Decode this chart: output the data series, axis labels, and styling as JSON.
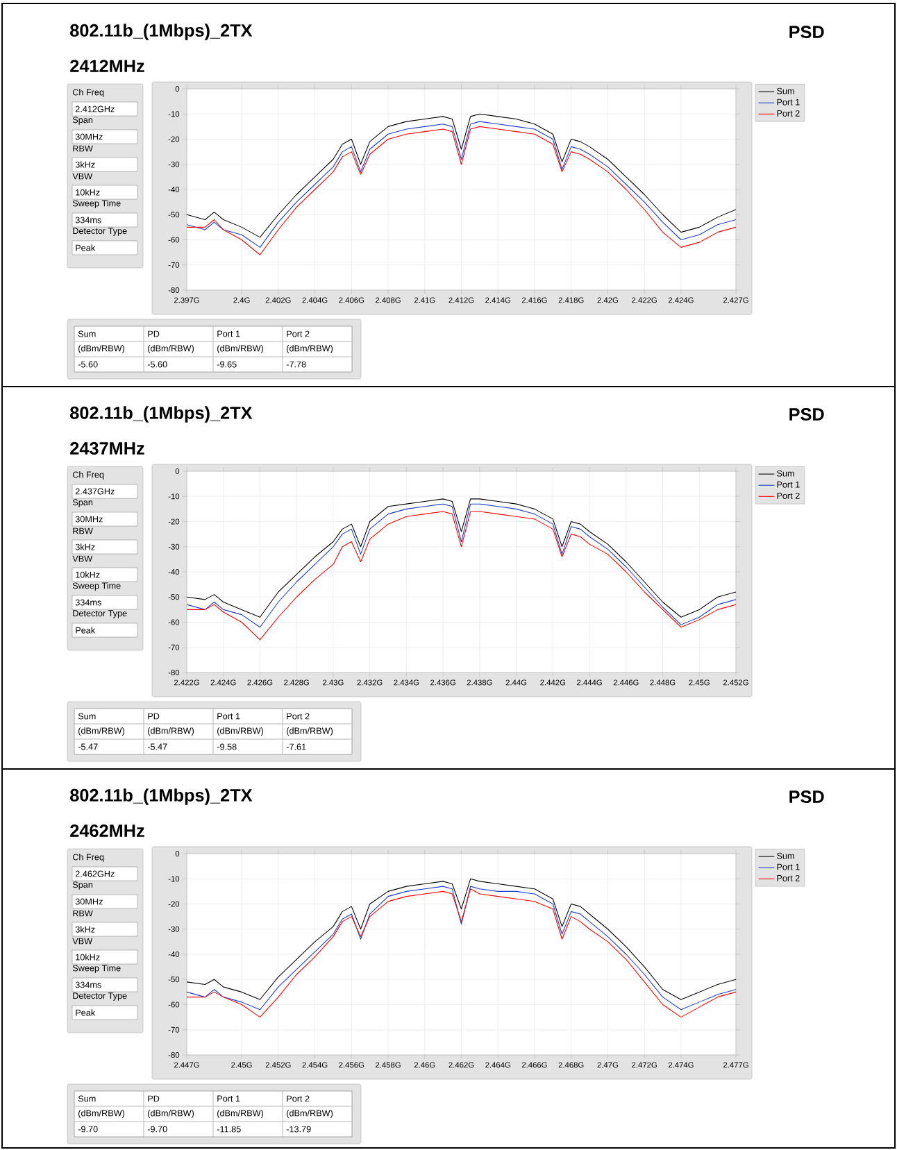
{
  "chart_data": [
    {
      "type": "line",
      "title": "802.11b_(1Mbps)_2TX",
      "subtitle": "2412MHz",
      "annotations": [
        "PSD",
        "Ch Freq",
        "2.412GHz",
        "Span",
        "30MHz",
        "RBW",
        "3kHz",
        "VBW",
        "10kHz",
        "Sweep Time",
        "334ms",
        "Detector Type",
        "Peak",
        "Sum",
        "PD",
        "Port 1",
        "Port 2",
        "(dBm/RBW)",
        "(dBm/RBW)",
        "(dBm/RBW)",
        "(dBm/RBW)",
        "-5.60",
        "-5.60",
        "-9.65",
        "-7.78"
      ],
      "x": [
        2.397,
        2.398,
        2.3985,
        2.399,
        2.4,
        2.401,
        2.402,
        2.403,
        2.404,
        2.405,
        2.4055,
        2.406,
        2.4065,
        2.407,
        2.408,
        2.409,
        2.41,
        2.411,
        2.4115,
        2.412,
        2.4125,
        2.413,
        2.414,
        2.415,
        2.416,
        2.417,
        2.4175,
        2.418,
        2.4185,
        2.419,
        2.42,
        2.421,
        2.422,
        2.423,
        2.424,
        2.425,
        2.426,
        2.427
      ],
      "series": [
        {
          "name": "Sum",
          "color": "#000000",
          "values": [
            -50,
            -52,
            -49,
            -52,
            -55,
            -59,
            -50,
            -42,
            -35,
            -28,
            -22,
            -20,
            -30,
            -21,
            -15,
            -13,
            -12,
            -11,
            -12,
            -24,
            -11,
            -10,
            -11,
            -12,
            -14,
            -18,
            -29,
            -20,
            -21,
            -23,
            -28,
            -35,
            -42,
            -50,
            -57,
            -55,
            -51,
            -48
          ]
        },
        {
          "name": "Port 1",
          "color": "#1a3ccc",
          "values": [
            -54,
            -56,
            -53,
            -56,
            -58,
            -63,
            -53,
            -45,
            -38,
            -31,
            -25,
            -23,
            -33,
            -24,
            -18,
            -16,
            -15,
            -14,
            -15,
            -28,
            -14,
            -13,
            -14,
            -15,
            -16,
            -20,
            -32,
            -23,
            -24,
            -26,
            -31,
            -38,
            -45,
            -53,
            -60,
            -58,
            -54,
            -52
          ]
        },
        {
          "name": "Port 2",
          "color": "#ff0000",
          "values": [
            -55,
            -55,
            -52,
            -56,
            -60,
            -66,
            -56,
            -47,
            -40,
            -33,
            -27,
            -25,
            -34,
            -26,
            -20,
            -18,
            -17,
            -16,
            -17,
            -30,
            -16,
            -15,
            -16,
            -17,
            -18,
            -22,
            -33,
            -25,
            -26,
            -28,
            -33,
            -40,
            -48,
            -57,
            -63,
            -61,
            -57,
            -55
          ]
        }
      ],
      "xlim": [
        2.397,
        2.427
      ],
      "ylim": [
        -80,
        0
      ],
      "xticks": [
        {
          "value": 2.397,
          "label": "2.397G"
        },
        {
          "value": 2.4,
          "label": "2.4G"
        },
        {
          "value": 2.402,
          "label": "2.402G"
        },
        {
          "value": 2.404,
          "label": "2.404G"
        },
        {
          "value": 2.406,
          "label": "2.406G"
        },
        {
          "value": 2.408,
          "label": "2.408G"
        },
        {
          "value": 2.41,
          "label": "2.41G"
        },
        {
          "value": 2.412,
          "label": "2.412G"
        },
        {
          "value": 2.414,
          "label": "2.414G"
        },
        {
          "value": 2.416,
          "label": "2.416G"
        },
        {
          "value": 2.418,
          "label": "2.418G"
        },
        {
          "value": 2.42,
          "label": "2.42G"
        },
        {
          "value": 2.422,
          "label": "2.422G"
        },
        {
          "value": 2.424,
          "label": "2.424G"
        },
        {
          "value": 2.427,
          "label": "2.427G"
        }
      ],
      "yticks": [
        0,
        -10,
        -20,
        -30,
        -40,
        -50,
        -60,
        -70,
        -80
      ],
      "grid": true,
      "legend": "right"
    },
    {
      "type": "line",
      "title": "802.11b_(1Mbps)_2TX",
      "subtitle": "2437MHz",
      "annotations": [
        "PSD",
        "Ch Freq",
        "2.437GHz",
        "Span",
        "30MHz",
        "RBW",
        "3kHz",
        "VBW",
        "10kHz",
        "Sweep Time",
        "334ms",
        "Detector Type",
        "Peak",
        "Sum",
        "PD",
        "Port 1",
        "Port 2",
        "(dBm/RBW)",
        "(dBm/RBW)",
        "(dBm/RBW)",
        "(dBm/RBW)",
        "-5.47",
        "-5.47",
        "-9.58",
        "-7.61"
      ],
      "x": [
        2.422,
        2.423,
        2.4235,
        2.424,
        2.425,
        2.426,
        2.427,
        2.428,
        2.429,
        2.43,
        2.4305,
        2.431,
        2.4315,
        2.432,
        2.433,
        2.434,
        2.435,
        2.436,
        2.4365,
        2.437,
        2.4375,
        2.438,
        2.439,
        2.44,
        2.441,
        2.442,
        2.4425,
        2.443,
        2.4435,
        2.444,
        2.445,
        2.446,
        2.447,
        2.448,
        2.449,
        2.45,
        2.451,
        2.452
      ],
      "series": [
        {
          "name": "Sum",
          "color": "#000000",
          "values": [
            -50,
            -51,
            -49,
            -52,
            -55,
            -58,
            -48,
            -41,
            -34,
            -28,
            -23,
            -21,
            -30,
            -20,
            -14,
            -13,
            -12,
            -11,
            -12,
            -24,
            -11,
            -11,
            -12,
            -13,
            -15,
            -19,
            -30,
            -20,
            -21,
            -24,
            -29,
            -36,
            -44,
            -52,
            -58,
            -55,
            -50,
            -48
          ]
        },
        {
          "name": "Port 1",
          "color": "#1a3ccc",
          "values": [
            -53,
            -55,
            -52,
            -55,
            -57,
            -62,
            -52,
            -44,
            -37,
            -30,
            -25,
            -23,
            -33,
            -23,
            -17,
            -15,
            -14,
            -13,
            -14,
            -28,
            -13,
            -13,
            -14,
            -15,
            -17,
            -21,
            -33,
            -22,
            -23,
            -26,
            -31,
            -38,
            -46,
            -54,
            -61,
            -58,
            -53,
            -51
          ]
        },
        {
          "name": "Port 2",
          "color": "#ff0000",
          "values": [
            -55,
            -55,
            -53,
            -56,
            -60,
            -67,
            -58,
            -50,
            -43,
            -37,
            -30,
            -28,
            -36,
            -27,
            -21,
            -18,
            -17,
            -16,
            -17,
            -30,
            -16,
            -16,
            -17,
            -18,
            -19,
            -23,
            -34,
            -25,
            -26,
            -29,
            -33,
            -40,
            -48,
            -55,
            -62,
            -59,
            -55,
            -53
          ]
        }
      ],
      "xlim": [
        2.422,
        2.452
      ],
      "ylim": [
        -80,
        0
      ],
      "xticks": [
        {
          "value": 2.422,
          "label": "2.422G"
        },
        {
          "value": 2.424,
          "label": "2.424G"
        },
        {
          "value": 2.426,
          "label": "2.426G"
        },
        {
          "value": 2.428,
          "label": "2.428G"
        },
        {
          "value": 2.43,
          "label": "2.43G"
        },
        {
          "value": 2.432,
          "label": "2.432G"
        },
        {
          "value": 2.434,
          "label": "2.434G"
        },
        {
          "value": 2.436,
          "label": "2.436G"
        },
        {
          "value": 2.438,
          "label": "2.438G"
        },
        {
          "value": 2.44,
          "label": "2.44G"
        },
        {
          "value": 2.442,
          "label": "2.442G"
        },
        {
          "value": 2.444,
          "label": "2.444G"
        },
        {
          "value": 2.446,
          "label": "2.446G"
        },
        {
          "value": 2.448,
          "label": "2.448G"
        },
        {
          "value": 2.45,
          "label": "2.45G"
        },
        {
          "value": 2.452,
          "label": "2.452G"
        }
      ],
      "yticks": [
        0,
        -10,
        -20,
        -30,
        -40,
        -50,
        -60,
        -70,
        -80
      ],
      "grid": true,
      "legend": "right"
    },
    {
      "type": "line",
      "title": "802.11b_(1Mbps)_2TX",
      "subtitle": "2462MHz",
      "annotations": [
        "PSD",
        "Ch Freq",
        "2.462GHz",
        "Span",
        "30MHz",
        "RBW",
        "3kHz",
        "VBW",
        "10kHz",
        "Sweep Time",
        "334ms",
        "Detector Type",
        "Peak",
        "Sum",
        "PD",
        "Port 1",
        "Port 2",
        "(dBm/RBW)",
        "(dBm/RBW)",
        "(dBm/RBW)",
        "(dBm/RBW)",
        "-9.70",
        "-9.70",
        "-11.85",
        "-13.79"
      ],
      "x": [
        2.447,
        2.448,
        2.4485,
        2.449,
        2.45,
        2.451,
        2.452,
        2.453,
        2.454,
        2.455,
        2.4555,
        2.456,
        2.4565,
        2.457,
        2.458,
        2.459,
        2.46,
        2.461,
        2.4615,
        2.462,
        2.4625,
        2.463,
        2.464,
        2.465,
        2.466,
        2.467,
        2.4675,
        2.468,
        2.4685,
        2.469,
        2.47,
        2.471,
        2.472,
        2.473,
        2.474,
        2.475,
        2.476,
        2.477
      ],
      "series": [
        {
          "name": "Sum",
          "color": "#000000",
          "values": [
            -51,
            -52,
            -50,
            -53,
            -55,
            -58,
            -49,
            -42,
            -35,
            -29,
            -23,
            -21,
            -30,
            -20,
            -15,
            -13,
            -12,
            -11,
            -12,
            -22,
            -10,
            -11,
            -12,
            -13,
            -14,
            -18,
            -29,
            -20,
            -21,
            -24,
            -30,
            -37,
            -45,
            -54,
            -58,
            -55,
            -52,
            -50
          ]
        },
        {
          "name": "Port 1",
          "color": "#1a3ccc",
          "values": [
            -55,
            -57,
            -54,
            -57,
            -59,
            -62,
            -53,
            -46,
            -39,
            -32,
            -26,
            -24,
            -34,
            -24,
            -17,
            -15,
            -14,
            -13,
            -14,
            -28,
            -13,
            -14,
            -15,
            -15,
            -16,
            -20,
            -32,
            -23,
            -24,
            -27,
            -33,
            -40,
            -48,
            -57,
            -62,
            -59,
            -56,
            -54
          ]
        },
        {
          "name": "Port 2",
          "color": "#ff0000",
          "values": [
            -57,
            -57,
            -55,
            -57,
            -60,
            -65,
            -57,
            -48,
            -41,
            -33,
            -27,
            -25,
            -33,
            -25,
            -19,
            -17,
            -16,
            -15,
            -16,
            -27,
            -14,
            -16,
            -17,
            -18,
            -19,
            -22,
            -34,
            -25,
            -27,
            -30,
            -35,
            -42,
            -51,
            -60,
            -65,
            -61,
            -57,
            -55
          ]
        }
      ],
      "xlim": [
        2.447,
        2.477
      ],
      "ylim": [
        -80,
        0
      ],
      "xticks": [
        {
          "value": 2.447,
          "label": "2.447G"
        },
        {
          "value": 2.45,
          "label": "2.45G"
        },
        {
          "value": 2.452,
          "label": "2.452G"
        },
        {
          "value": 2.454,
          "label": "2.454G"
        },
        {
          "value": 2.456,
          "label": "2.456G"
        },
        {
          "value": 2.458,
          "label": "2.458G"
        },
        {
          "value": 2.46,
          "label": "2.46G"
        },
        {
          "value": 2.462,
          "label": "2.462G"
        },
        {
          "value": 2.464,
          "label": "2.464G"
        },
        {
          "value": 2.466,
          "label": "2.466G"
        },
        {
          "value": 2.468,
          "label": "2.468G"
        },
        {
          "value": 2.47,
          "label": "2.47G"
        },
        {
          "value": 2.472,
          "label": "2.472G"
        },
        {
          "value": 2.474,
          "label": "2.474G"
        },
        {
          "value": 2.477,
          "label": "2.477G"
        }
      ],
      "yticks": [
        0,
        -10,
        -20,
        -30,
        -40,
        -50,
        -60,
        -70,
        -80
      ],
      "grid": true,
      "legend": "right"
    }
  ]
}
